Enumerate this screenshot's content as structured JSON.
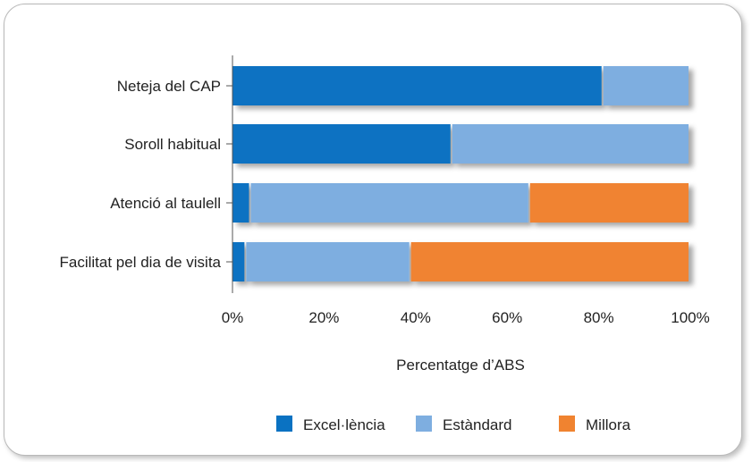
{
  "chart_data": {
    "type": "bar",
    "orientation": "horizontal",
    "stacked": true,
    "title": "",
    "xlabel": "Percentatge d’ABS",
    "ylabel": "",
    "xlim": [
      0,
      100
    ],
    "x_ticks": [
      "0%",
      "20%",
      "40%",
      "60%",
      "80%",
      "100%"
    ],
    "categories": [
      "Neteja del CAP",
      "Soroll habitual",
      "Atenció al taulell",
      "Facilitat pel dia de visita"
    ],
    "series": [
      {
        "name": "Excel·lència",
        "color": "#0a72c2",
        "values": [
          81,
          48,
          4,
          3
        ]
      },
      {
        "name": "Estàndard",
        "color": "#7eaee0",
        "values": [
          19,
          52,
          61,
          36
        ]
      },
      {
        "name": "Millora",
        "color": "#f08330",
        "values": [
          0,
          0,
          35,
          61
        ]
      }
    ],
    "legend_position": "bottom",
    "grid": false
  }
}
